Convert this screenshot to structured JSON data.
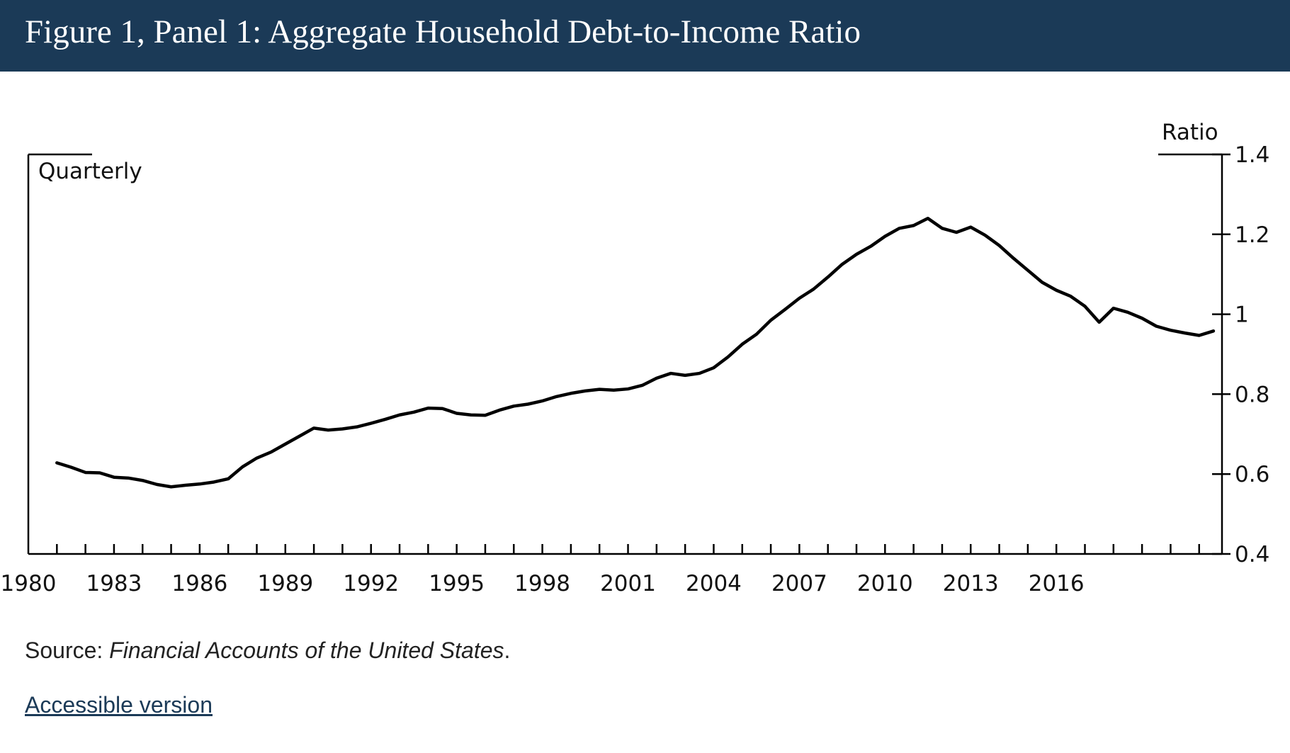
{
  "header": {
    "title": "Figure 1, Panel 1: Aggregate Household Debt-to-Income Ratio"
  },
  "colors": {
    "header_bg": "#1b3a57",
    "header_text": "#ffffff",
    "line": "#000000",
    "link": "#1b3a57"
  },
  "chart_data": {
    "type": "line",
    "title": "",
    "frequency_label": "Quarterly",
    "ylabel": "Ratio",
    "y_axis_side": "right",
    "ylim": [
      0.4,
      1.4
    ],
    "y_ticks": [
      "0.4",
      "0.6",
      "0.8",
      "1",
      "1.2",
      "1.4"
    ],
    "xlim": [
      1980,
      2021.8
    ],
    "x_tick_labels": [
      "1980",
      "1983",
      "1986",
      "1989",
      "1992",
      "1995",
      "1998",
      "2001",
      "2004",
      "2007",
      "2010",
      "2013",
      "2016"
    ],
    "grid": false,
    "series": [
      {
        "x": [
          1981.0,
          1981.5,
          1982.0,
          1982.5,
          1983.0,
          1983.5,
          1984.0,
          1984.5,
          1985.0,
          1985.5,
          1986.0,
          1986.5,
          1987.0,
          1987.5,
          1988.0,
          1988.5,
          1989.0,
          1989.5,
          1990.0,
          1990.5,
          1991.0,
          1991.5,
          1992.0,
          1992.5,
          1993.0,
          1993.5,
          1994.0,
          1994.5,
          1995.0,
          1995.5,
          1996.0,
          1996.5,
          1997.0,
          1997.5,
          1998.0,
          1998.5,
          1999.0,
          1999.5,
          2000.0,
          2000.5,
          2001.0,
          2001.5,
          2002.0,
          2002.5,
          2003.0,
          2003.5,
          2004.0,
          2004.5,
          2005.0,
          2005.5,
          2006.0,
          2006.5,
          2007.0,
          2007.5,
          2008.0,
          2008.5,
          2009.0,
          2009.5,
          2010.0,
          2010.5,
          2011.0,
          2011.5,
          2012.0,
          2012.5,
          2013.0,
          2013.5,
          2014.0,
          2014.5,
          2015.0,
          2015.5,
          2016.0,
          2016.5,
          2017.0,
          2017.5,
          2018.0,
          2018.5,
          2019.0,
          2019.5,
          2020.0,
          2020.5,
          2021.0,
          2021.5
        ],
        "y": [
          0.628,
          0.617,
          0.604,
          0.603,
          0.592,
          0.59,
          0.584,
          0.574,
          0.568,
          0.572,
          0.575,
          0.58,
          0.588,
          0.618,
          0.64,
          0.655,
          0.675,
          0.695,
          0.715,
          0.71,
          0.713,
          0.718,
          0.727,
          0.737,
          0.748,
          0.755,
          0.765,
          0.764,
          0.752,
          0.748,
          0.747,
          0.76,
          0.77,
          0.775,
          0.783,
          0.794,
          0.802,
          0.808,
          0.812,
          0.81,
          0.813,
          0.822,
          0.84,
          0.852,
          0.847,
          0.852,
          0.866,
          0.893,
          0.925,
          0.95,
          0.985,
          1.012,
          1.04,
          1.063,
          1.093,
          1.125,
          1.15,
          1.17,
          1.195,
          1.215,
          1.222,
          1.24,
          1.215,
          1.205,
          1.218,
          1.198,
          1.172,
          1.14,
          1.11,
          1.08,
          1.06,
          1.045,
          1.02,
          0.98,
          1.015,
          1.005,
          0.99,
          0.97,
          0.96,
          0.953,
          0.947,
          0.958
        ]
      }
    ]
  },
  "footer": {
    "source_prefix": "Source: ",
    "source_title": "Financial Accounts of the United States",
    "source_suffix": ".",
    "link_text": "Accessible version"
  }
}
